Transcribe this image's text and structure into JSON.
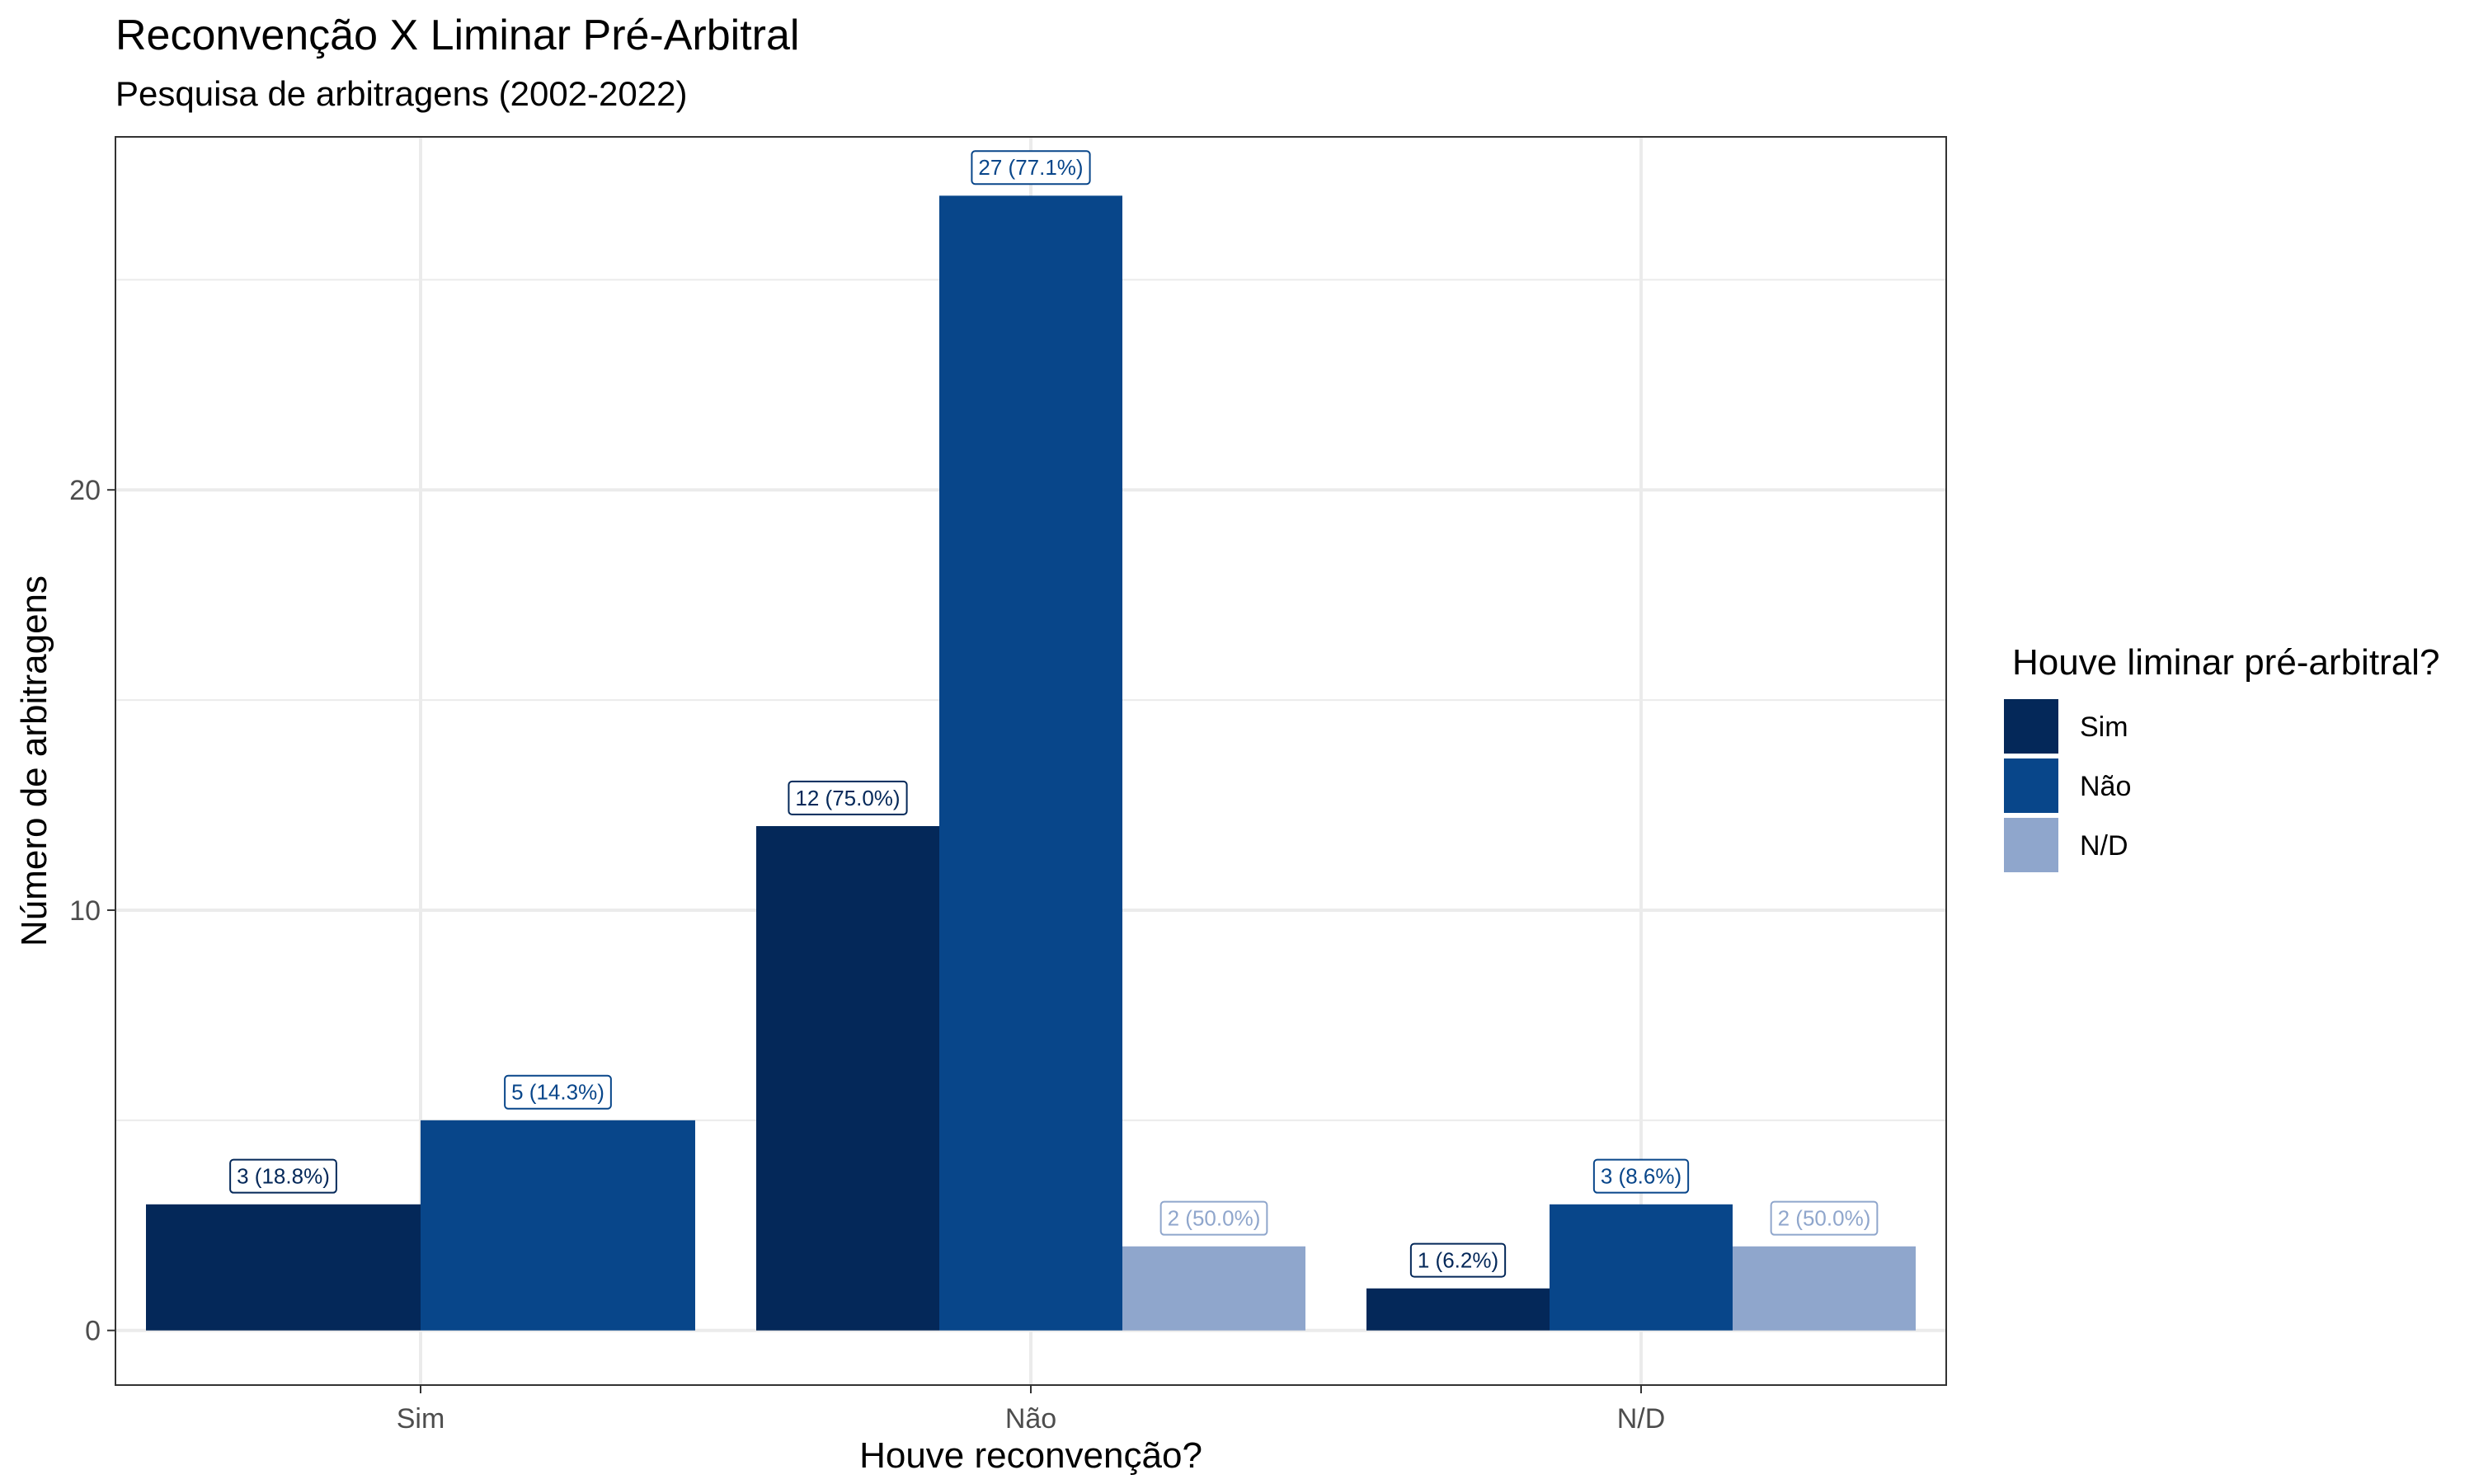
{
  "chart_data": {
    "type": "bar",
    "title": "Reconvenção X Liminar Pré-Arbitral",
    "subtitle": "Pesquisa de arbitragens (2002-2022)",
    "xlabel": "Houve reconvenção?",
    "ylabel": "Número de arbitragens",
    "categories": [
      "Sim",
      "Não",
      "N/D"
    ],
    "ylim": [
      -1.3,
      28.4
    ],
    "yticks": [
      0,
      10,
      20
    ],
    "grid": true,
    "legend": {
      "title": "Houve liminar pré-arbitral?",
      "placement": "right"
    },
    "series": [
      {
        "name": "Sim",
        "color": "#042859",
        "values": [
          3,
          12,
          1
        ],
        "labels": [
          "3 (18.8%)",
          "12 (75.0%)",
          "1 (6.2%)"
        ]
      },
      {
        "name": "Não",
        "color": "#08468a",
        "values": [
          5,
          27,
          3
        ],
        "labels": [
          "5 (14.3%)",
          "27 (77.1%)",
          "3 (8.6%)"
        ]
      },
      {
        "name": "N/D",
        "color": "#8fa6cc",
        "values": [
          0,
          2,
          2
        ],
        "labels": [
          "",
          "2 (50.0%)",
          "2 (50.0%)"
        ]
      }
    ]
  }
}
